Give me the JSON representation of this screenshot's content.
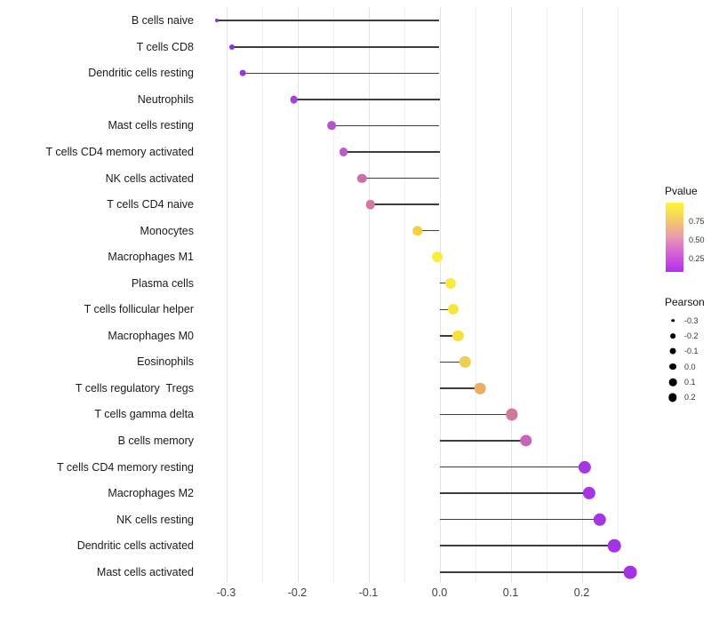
{
  "chart_data": {
    "type": "lollipop",
    "orientation": "horizontal",
    "title": "",
    "xlabel": "",
    "ylabel": "",
    "grid": "vertical-only",
    "xlim": [
      -0.34,
      0.285
    ],
    "x_tick_labels": [
      "-0.3",
      "-0.2",
      "-0.1",
      "0.0",
      "0.1",
      "0.2"
    ],
    "x_tick_values": [
      -0.3,
      -0.2,
      -0.1,
      0.0,
      0.1,
      0.2
    ],
    "x_minor_tick_values": [
      -0.25,
      -0.15,
      -0.05,
      0.05,
      0.15,
      0.25
    ],
    "categories": [
      "B cells naive",
      "T cells CD8",
      "Dendritic cells resting",
      "Neutrophils",
      "Mast cells resting",
      "T cells CD4 memory activated",
      "NK cells activated",
      "T cells CD4 naive",
      "Monocytes",
      "Macrophages M1",
      "Plasma cells",
      "T cells follicular helper",
      "Macrophages M0",
      "Eosinophils",
      "T cells regulatory  Tregs",
      "T cells gamma delta",
      "B cells memory",
      "T cells CD4 memory resting",
      "Macrophages M2",
      "NK cells resting",
      "Dendritic cells activated",
      "Mast cells activated"
    ],
    "series": [
      {
        "name": "Pearson",
        "values": [
          -0.313,
          -0.292,
          -0.277,
          -0.205,
          -0.152,
          -0.135,
          -0.109,
          -0.097,
          -0.031,
          -0.003,
          0.016,
          0.019,
          0.026,
          0.036,
          0.057,
          0.102,
          0.122,
          0.204,
          0.21,
          0.225,
          0.246,
          0.268
        ]
      }
    ],
    "point_colors": [
      "#8E2CE8",
      "#9130E5",
      "#9733E2",
      "#A342DB",
      "#B454CC",
      "#BC5CC6",
      "#C96FAA",
      "#D27A9F",
      "#F2D33E",
      "#FAEE3D",
      "#F8E93C",
      "#F8E63D",
      "#F6E03E",
      "#F0CE52",
      "#EDAF66",
      "#D2779E",
      "#C765B2",
      "#A537E2",
      "#A537E2",
      "#A436E3",
      "#A334E4",
      "#A732E5"
    ],
    "stem_color": "#3d3d3d",
    "legend_position": "right"
  },
  "legend_pvalue": {
    "title": "Pvalue",
    "tick_labels": [
      "0.75",
      "0.50",
      "0.25"
    ],
    "gradient_top_color": "#FCF53B",
    "gradient_bottom_color": "#B02DF0"
  },
  "legend_pearson": {
    "title": "Pearson",
    "entry_labels": [
      "-0.3",
      "-0.2",
      "-0.1",
      "0.0",
      "0.1",
      "0.2"
    ],
    "entry_values": [
      -0.3,
      -0.2,
      -0.1,
      0.0,
      0.1,
      0.2
    ],
    "dot_color": "#000000"
  }
}
